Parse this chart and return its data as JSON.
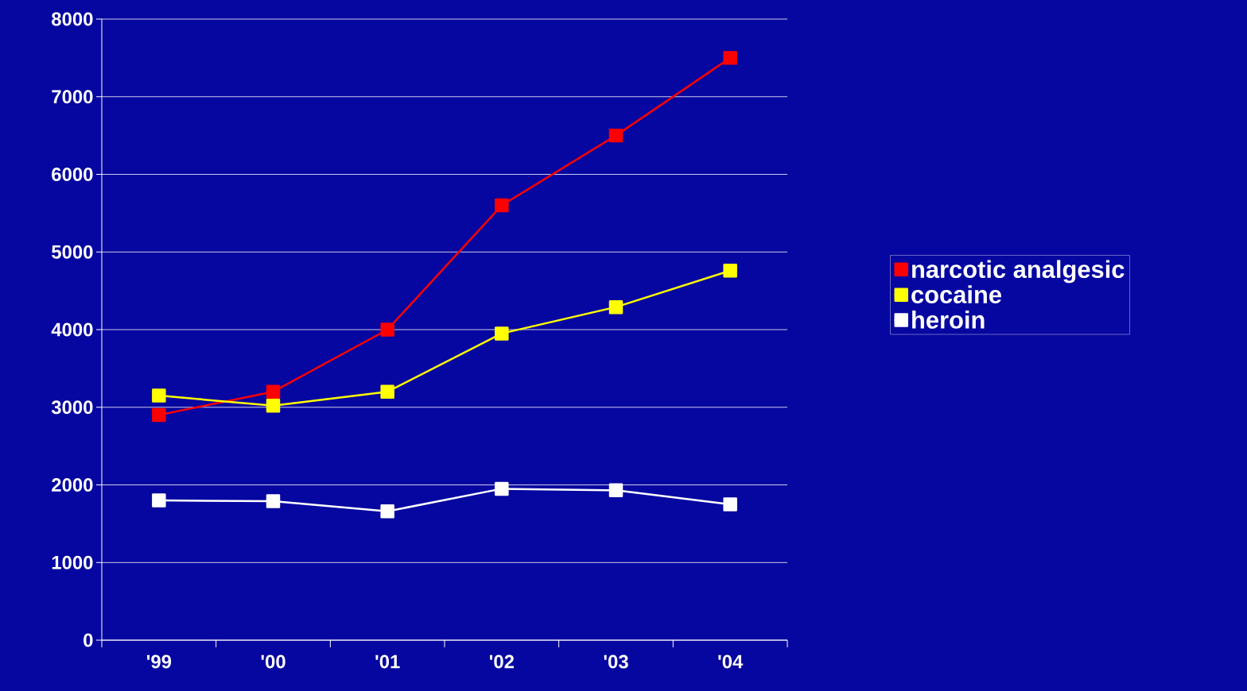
{
  "chart_data": {
    "type": "line",
    "categories": [
      "'99",
      "'00",
      "'01",
      "'02",
      "'03",
      "'04"
    ],
    "series": [
      {
        "name": "narcotic analgesic",
        "color": "#ff0000",
        "values": [
          2900,
          3200,
          4000,
          5600,
          6500,
          7500
        ]
      },
      {
        "name": "cocaine",
        "color": "#ffff00",
        "values": [
          3150,
          3020,
          3200,
          3950,
          4290,
          4760
        ]
      },
      {
        "name": "heroin",
        "color": "#ffffff",
        "values": [
          1800,
          1790,
          1660,
          1950,
          1930,
          1750
        ]
      }
    ],
    "ylim": [
      0,
      8000
    ],
    "yticks": [
      0,
      1000,
      2000,
      3000,
      4000,
      5000,
      6000,
      7000,
      8000
    ],
    "grid": "y",
    "legend": "right",
    "marker": "square",
    "line_style": "solid"
  }
}
